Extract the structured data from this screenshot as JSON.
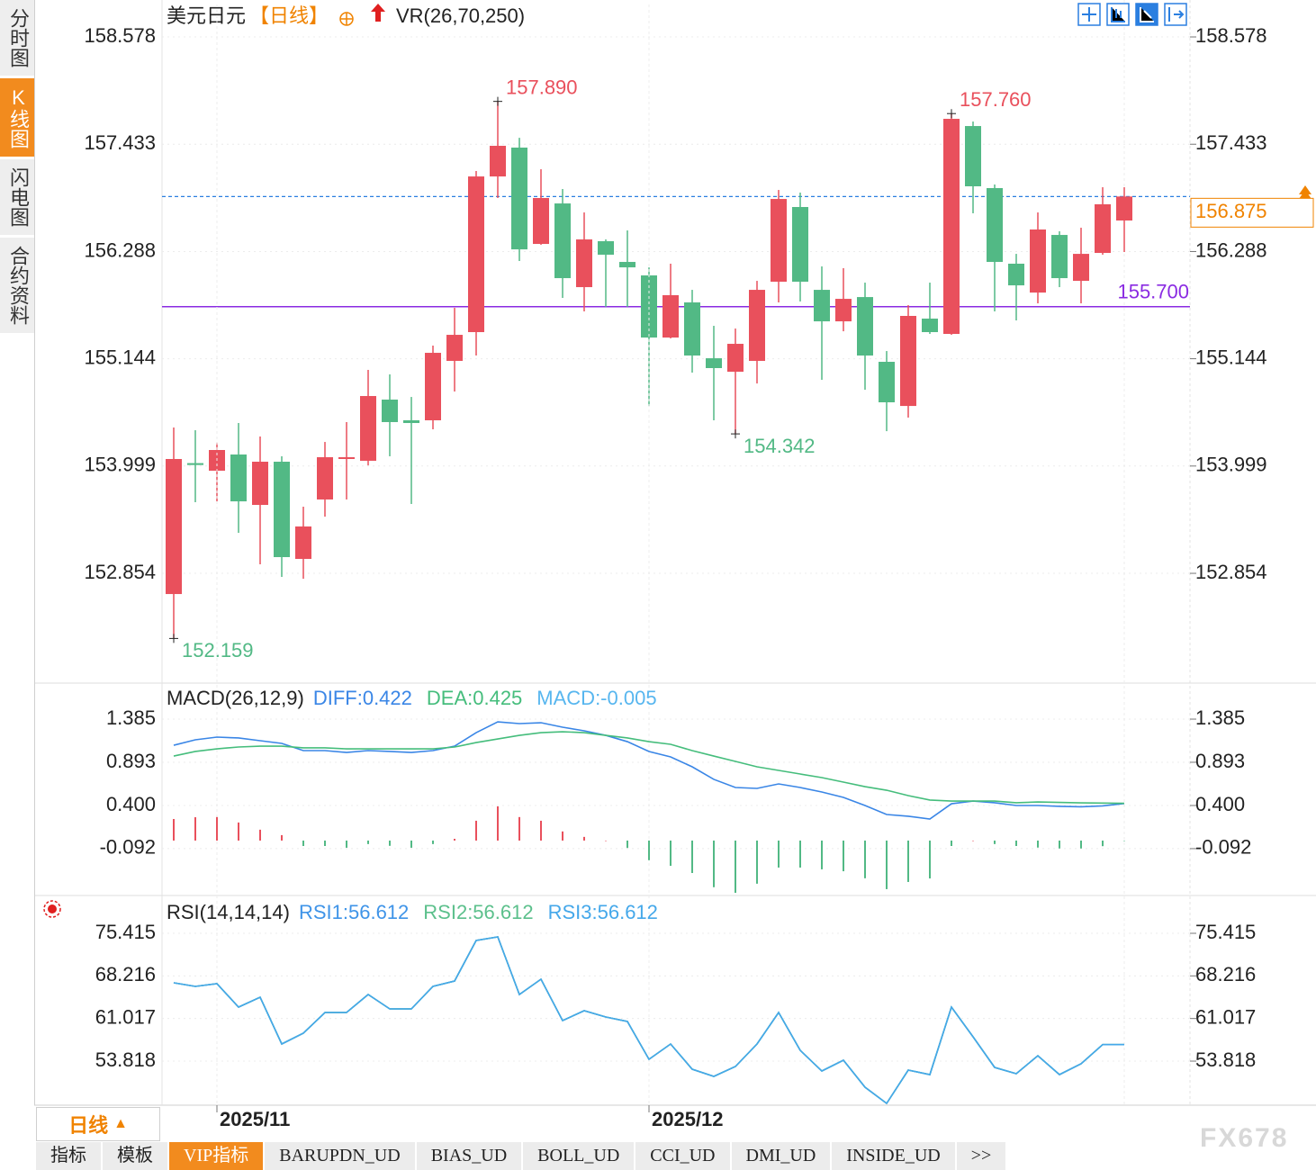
{
  "chart_data": [
    {
      "type": "candlestick",
      "title": "美元日元",
      "period": "【日线】",
      "indicator": "VR(26,70,250)",
      "categories": [
        null,
        null,
        "2025/11",
        null,
        null,
        null,
        null,
        null,
        null,
        null,
        null,
        null,
        null,
        null,
        null,
        null,
        null,
        null,
        null,
        null,
        null,
        null,
        "2025/12",
        null,
        null,
        null,
        null,
        null,
        null,
        null,
        null,
        null,
        null,
        null,
        null,
        null,
        null,
        null,
        null,
        null,
        null,
        null,
        null,
        null,
        null
      ],
      "open": [
        152.633,
        154.03,
        153.949,
        154.122,
        153.584,
        154.045,
        153.008,
        153.642,
        154.074,
        154.055,
        154.708,
        154.487,
        154.487,
        155.121,
        155.428,
        157.089,
        157.397,
        156.369,
        156.801,
        155.908,
        156.398,
        156.177,
        156.033,
        155.37,
        155.745,
        155.149,
        155.005,
        155.121,
        155.966,
        156.763,
        155.879,
        155.543,
        155.802,
        155.111,
        154.64,
        155.572,
        155.409,
        157.627,
        156.965,
        156.158,
        155.85,
        156.465,
        155.975,
        156.273,
        156.619
      ],
      "high": [
        154.41,
        154.381,
        154.247,
        154.458,
        154.314,
        154.103,
        153.565,
        154.256,
        154.468,
        155.025,
        154.977,
        154.736,
        155.284,
        155.687,
        157.147,
        157.89,
        157.502,
        157.166,
        156.955,
        156.705,
        156.417,
        156.513,
        156.119,
        156.158,
        155.879,
        155.495,
        155.466,
        155.975,
        156.945,
        156.917,
        156.129,
        156.11,
        155.956,
        155.226,
        155.716,
        155.956,
        157.76,
        157.675,
        157.003,
        156.263,
        156.705,
        156.504,
        156.542,
        156.974,
        156.974
      ],
      "low": [
        152.159,
        153.613,
        153.622,
        153.286,
        152.95,
        152.816,
        152.796,
        153.459,
        153.642,
        154.006,
        154.103,
        153.594,
        154.391,
        154.794,
        155.178,
        156.859,
        156.187,
        156.36,
        155.793,
        155.649,
        155.697,
        155.697,
        154.64,
        155.361,
        154.996,
        154.487,
        154.342,
        154.88,
        155.745,
        155.755,
        154.919,
        155.437,
        154.813,
        154.371,
        154.516,
        155.409,
        155.399,
        156.696,
        155.649,
        155.553,
        155.735,
        155.908,
        155.735,
        156.254,
        156.283
      ],
      "close": [
        154.074,
        154.01,
        154.17,
        153.622,
        154.045,
        153.027,
        153.354,
        154.093,
        154.093,
        154.746,
        154.468,
        154.458,
        155.207,
        155.399,
        157.089,
        157.416,
        156.311,
        156.859,
        156.004,
        156.417,
        156.254,
        156.119,
        155.37,
        155.822,
        155.178,
        155.044,
        155.303,
        155.879,
        156.849,
        155.966,
        155.543,
        155.783,
        155.178,
        154.679,
        155.601,
        155.428,
        157.704,
        156.984,
        156.177,
        155.927,
        156.523,
        156.004,
        156.263,
        156.792,
        156.875
      ],
      "high_labels": [
        null,
        null,
        null,
        null,
        null,
        null,
        null,
        null,
        null,
        null,
        null,
        null,
        null,
        null,
        null,
        "157.890",
        null,
        null,
        null,
        null,
        null,
        null,
        null,
        null,
        null,
        null,
        null,
        null,
        null,
        null,
        null,
        null,
        null,
        null,
        null,
        null,
        "157.760",
        null,
        null,
        null,
        null,
        null,
        null,
        null,
        null
      ],
      "low_labels": [
        "152.159",
        null,
        null,
        null,
        null,
        null,
        null,
        null,
        null,
        null,
        null,
        null,
        null,
        null,
        null,
        null,
        null,
        null,
        null,
        null,
        null,
        null,
        null,
        null,
        null,
        null,
        "154.342",
        null,
        null,
        null,
        null,
        null,
        null,
        null,
        null,
        null,
        null,
        null,
        null,
        null,
        null,
        null,
        null,
        null,
        null
      ],
      "up_color": "#e9505c",
      "down_color": "#52b985",
      "ylim": [
        151.721,
        158.924
      ],
      "yticks": [
        158.578,
        157.433,
        156.288,
        155.144,
        153.999,
        152.854
      ],
      "grid": true,
      "hline": {
        "value": 155.7,
        "label": "155.700",
        "color": "#8a2be2"
      },
      "price_line": {
        "value": 156.875,
        "label": "156.875",
        "color": "#2b7fe0",
        "label_color": "#f08300"
      }
    },
    {
      "type": "macd",
      "title": "MACD(26,12,9)",
      "series": [
        {
          "name": "DIFF:0.422",
          "type": "line",
          "color": "#3a86e6",
          "values": [
            1.087,
            1.149,
            1.18,
            1.17,
            1.139,
            1.108,
            1.026,
            1.026,
            1.005,
            1.026,
            1.016,
            1.005,
            1.026,
            1.077,
            1.231,
            1.354,
            1.334,
            1.344,
            1.293,
            1.252,
            1.2,
            1.128,
            1.016,
            0.954,
            0.841,
            0.698,
            0.605,
            0.595,
            0.646,
            0.605,
            0.554,
            0.492,
            0.4,
            0.297,
            0.277,
            0.246,
            0.42,
            0.451,
            0.431,
            0.4,
            0.4,
            0.39,
            0.385,
            0.395,
            0.422
          ]
        },
        {
          "name": "DEA:0.425",
          "type": "line",
          "color": "#45bd7c",
          "values": [
            0.964,
            1.016,
            1.046,
            1.067,
            1.077,
            1.077,
            1.057,
            1.057,
            1.046,
            1.046,
            1.046,
            1.046,
            1.046,
            1.067,
            1.118,
            1.159,
            1.2,
            1.231,
            1.241,
            1.231,
            1.2,
            1.17,
            1.128,
            1.098,
            1.026,
            0.964,
            0.903,
            0.841,
            0.8,
            0.759,
            0.718,
            0.667,
            0.615,
            0.574,
            0.513,
            0.462,
            0.451,
            0.451,
            0.451,
            0.431,
            0.44,
            0.435,
            0.43,
            0.427,
            0.425
          ]
        },
        {
          "name": "MACD:-0.005",
          "type": "bar",
          "color": "#57b6ef",
          "up_color": "#e9505c",
          "down_color": "#52b985",
          "values": [
            0.246,
            0.266,
            0.268,
            0.206,
            0.124,
            0.062,
            -0.062,
            -0.062,
            -0.082,
            -0.04,
            -0.06,
            -0.082,
            -0.04,
            0.02,
            0.226,
            0.39,
            0.268,
            0.226,
            0.104,
            0.042,
            0,
            -0.084,
            -0.224,
            -0.288,
            -0.37,
            -0.532,
            -0.596,
            -0.492,
            -0.308,
            -0.308,
            -0.328,
            -0.35,
            -0.43,
            -0.554,
            -0.472,
            -0.432,
            -0.062,
            0,
            -0.04,
            -0.062,
            -0.08,
            -0.09,
            -0.09,
            -0.064,
            -0.005
          ]
        }
      ],
      "ylim": [
        -0.606,
        1.765
      ],
      "yticks": [
        1.385,
        0.893,
        {
          "value": 0.4,
          "label": "0.400"
        },
        -0.092
      ],
      "grid": true
    },
    {
      "type": "line",
      "title": "RSI(14,14,14)",
      "series": [
        {
          "name": "RSI1:56.612",
          "color": "#3f94e8",
          "values": [
            67.05,
            66.442,
            66.898,
            62.944,
            64.617,
            56.708,
            58.533,
            62.031,
            62.031,
            65.073,
            62.639,
            62.639,
            66.442,
            67.354,
            74.198,
            74.807,
            65.073,
            67.658,
            60.662,
            62.335,
            61.271,
            60.51,
            54.122,
            56.708,
            52.449,
            51.233,
            52.906,
            56.708,
            62.031,
            55.643,
            52.145,
            53.97,
            49.408,
            46.67,
            52.297,
            51.537,
            62.944,
            57.925,
            52.754,
            51.689,
            54.731,
            51.537,
            53.362,
            56.612,
            56.612
          ]
        },
        {
          "name": "RSI2:56.612",
          "color": "#5cc08c",
          "values": [
            67.05,
            66.442,
            66.898,
            62.944,
            64.617,
            56.708,
            58.533,
            62.031,
            62.031,
            65.073,
            62.639,
            62.639,
            66.442,
            67.354,
            74.198,
            74.807,
            65.073,
            67.658,
            60.662,
            62.335,
            61.271,
            60.51,
            54.122,
            56.708,
            52.449,
            51.233,
            52.906,
            56.708,
            62.031,
            55.643,
            52.145,
            53.97,
            49.408,
            46.67,
            52.297,
            51.537,
            62.944,
            57.925,
            52.754,
            51.689,
            54.731,
            51.537,
            53.362,
            56.612,
            56.612
          ]
        },
        {
          "name": "RSI3:56.612",
          "color": "#45a8ea",
          "values": [
            67.05,
            66.442,
            66.898,
            62.944,
            64.617,
            56.708,
            58.533,
            62.031,
            62.031,
            65.073,
            62.639,
            62.639,
            66.442,
            67.354,
            74.198,
            74.807,
            65.073,
            67.658,
            60.662,
            62.335,
            61.271,
            60.51,
            54.122,
            56.708,
            52.449,
            51.233,
            52.906,
            56.708,
            62.031,
            55.643,
            52.145,
            53.97,
            49.408,
            46.67,
            52.297,
            51.537,
            62.944,
            57.925,
            52.754,
            51.689,
            54.731,
            51.537,
            53.362,
            56.612,
            56.612
          ]
        }
      ],
      "ylim": [
        46.37,
        81.04
      ],
      "yticks": [
        75.415,
        68.216,
        61.017,
        53.818
      ],
      "grid": true
    }
  ],
  "sidebar": {
    "tabs": [
      "分时图",
      "K线图",
      "闪电图",
      "合约资料"
    ],
    "active": 1
  },
  "period_button": {
    "label": "日线",
    "icon": "▲"
  },
  "tabs": {
    "items": [
      "指标",
      "模板",
      "VIP指标",
      "BARUPDN_UD",
      "BIAS_UD",
      "BOLL_UD",
      "CCI_UD",
      "DMI_UD",
      "INSIDE_UD",
      ">>"
    ],
    "active": 2
  },
  "watermark": "FX678"
}
